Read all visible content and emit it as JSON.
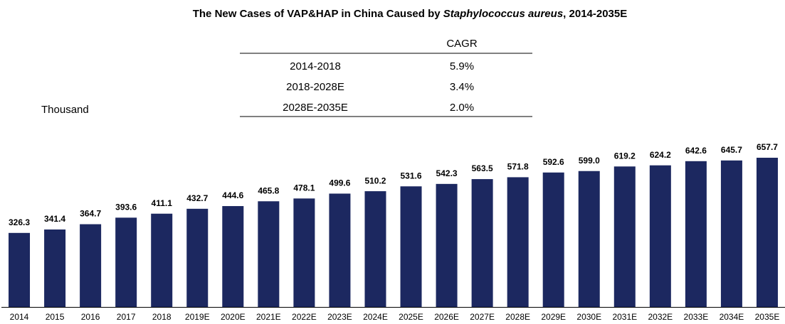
{
  "chart_data": {
    "type": "bar",
    "title": [
      "The New Cases of VAP&HAP in China Caused by ",
      "Staphylococcus aureus",
      ", 2014-2035E"
    ],
    "title_italic": [
      false,
      true,
      false
    ],
    "y_label": "Thousand",
    "categories": [
      "2014",
      "2015",
      "2016",
      "2017",
      "2018",
      "2019E",
      "2020E",
      "2021E",
      "2022E",
      "2023E",
      "2024E",
      "2025E",
      "2026E",
      "2027E",
      "2028E",
      "2029E",
      "2030E",
      "2031E",
      "2032E",
      "2033E",
      "2034E",
      "2035E"
    ],
    "values": [
      326.3,
      341.4,
      364.7,
      393.6,
      411.1,
      432.7,
      444.6,
      465.8,
      478.1,
      499.6,
      510.2,
      531.6,
      542.3,
      563.5,
      571.8,
      592.6,
      599.0,
      619.2,
      624.2,
      642.6,
      645.7,
      657.7
    ],
    "value_labels": [
      "326.3",
      "341.4",
      "364.7",
      "393.6",
      "411.1",
      "432.7",
      "444.6",
      "465.8",
      "478.1",
      "499.6",
      "510.2",
      "531.6",
      "542.3",
      "563.5",
      "571.8",
      "592.6",
      "599.0",
      "619.2",
      "624.2",
      "642.6",
      "645.7",
      "657.7"
    ],
    "color": "#1c2860",
    "cagr_table": {
      "header": "CAGR",
      "rows": [
        [
          "2014-2018",
          "5.9%"
        ],
        [
          "2018-2028E",
          "3.4%"
        ],
        [
          "2028E-2035E",
          "2.0%"
        ]
      ]
    }
  }
}
